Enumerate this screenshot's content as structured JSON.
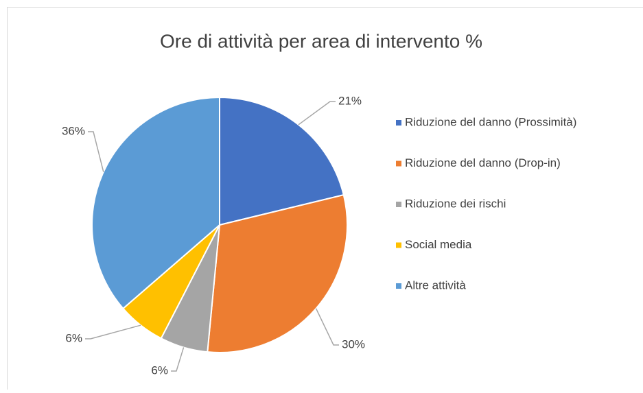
{
  "chart_data": {
    "type": "pie",
    "title": "Ore di attività per area di intervento %",
    "categories": [
      "Riduzione del danno (Prossimità)",
      "Riduzione del danno (Drop-in)",
      "Riduzione dei rischi",
      "Social media",
      "Altre attività"
    ],
    "values": [
      21,
      30,
      6,
      6,
      36
    ],
    "value_labels": [
      "21%",
      "30%",
      "6%",
      "6%",
      "36%"
    ],
    "colors": [
      "#4472c4",
      "#ed7d31",
      "#a5a5a5",
      "#ffc000",
      "#5b9bd5"
    ],
    "legend": "right"
  }
}
